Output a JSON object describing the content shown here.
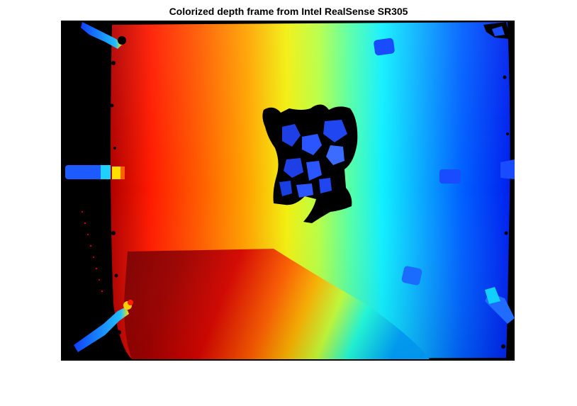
{
  "figure": {
    "title": "Colorized depth frame from Intel RealSense SR305"
  },
  "image": {
    "description_colormap": "jet",
    "background_color": "#ffffff",
    "invalid_depth_color": "#000000"
  }
}
